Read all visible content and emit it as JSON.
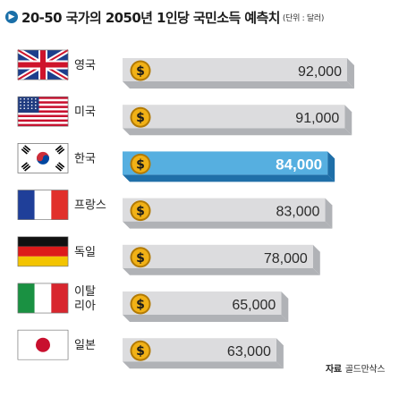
{
  "header": {
    "title": "20-50 국가의 2050년 1인당 국민소득 예측치",
    "unit": "(단위 : 달러)",
    "icon": "chevron-right-icon"
  },
  "source": {
    "label": "자료",
    "value": "골드만삭스"
  },
  "colors": {
    "bar_face": "#dcdcde",
    "bar_shadow": "#b0b2b6",
    "highlight_face": "#56afe0",
    "highlight_shadow": "#1f6fa8",
    "coin": "#f1b116",
    "coin_dark": "#b27a05"
  },
  "chart_data": {
    "type": "bar",
    "orientation": "horizontal",
    "title": "20-50 국가의 2050년 1인당 국민소득 예측치",
    "unit": "(단위 : 달러)",
    "categories": [
      "영국",
      "미국",
      "한국",
      "프랑스",
      "독일",
      "이탈리아",
      "일본"
    ],
    "category_display": [
      "영국",
      "미국",
      "한국",
      "프랑스",
      "독일",
      "이탈\n리아",
      "일본"
    ],
    "flag_icons": [
      "uk-flag-icon",
      "us-flag-icon",
      "korea-flag-icon",
      "france-flag-icon",
      "germany-flag-icon",
      "italy-flag-icon",
      "japan-flag-icon"
    ],
    "values": [
      92000,
      91000,
      84000,
      83000,
      78000,
      65000,
      63000
    ],
    "value_labels": [
      "92,000",
      "91,000",
      "84,000",
      "83,000",
      "78,000",
      "65,000",
      "63,000"
    ],
    "coin_symbol": "$",
    "highlight_index": 2
  }
}
